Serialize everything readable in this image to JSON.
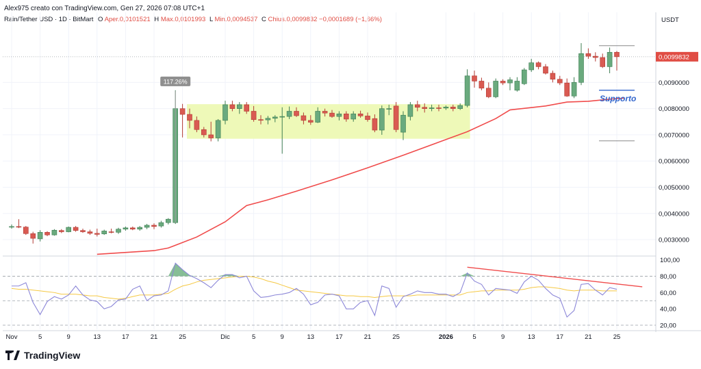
{
  "header": {
    "created_by": "Alex975 creato con TradingView.com, Gen 27, 2026 07:08 UTC+1",
    "symbol_line": "Rain/Tether USD · 1D · BitMart",
    "open_label": "O",
    "open_value": "Aper.0,0101521",
    "high_label": "H",
    "high_value": "Max.0,0101993",
    "low_label": "L",
    "low_value": "Min.0,0094537",
    "close_label": "C",
    "close_value": "Chius.0,0099832",
    "change_value": "−0,0001689 (−1,66%)"
  },
  "colors": {
    "up": "#6aaa7e",
    "up_border": "#3d7d52",
    "down": "#d95a52",
    "down_border": "#b23a33",
    "ma": "#f04b4b",
    "rsi": "#8c87d8",
    "rsi_ma": "#f5c842",
    "range_box": "#eef9b8",
    "support": "#3366cc"
  },
  "logo": {
    "text": "TradingView"
  },
  "chart_data": {
    "type": "candlestick",
    "currency": "USDT",
    "last_price_label": "0,0099832",
    "ylim": [
      0.0024,
      0.0111
    ],
    "y_ticks": [
      {
        "value": 0.003,
        "label": "0,0030000"
      },
      {
        "value": 0.004,
        "label": "0,0040000"
      },
      {
        "value": 0.005,
        "label": "0,0050000"
      },
      {
        "value": 0.006,
        "label": "0,0060000"
      },
      {
        "value": 0.007,
        "label": "0,0070000"
      },
      {
        "value": 0.008,
        "label": "0,0080000"
      },
      {
        "value": 0.009,
        "label": "0,0090000"
      }
    ],
    "x_ticks": [
      {
        "index": 0,
        "label": "Nov"
      },
      {
        "index": 4,
        "label": "5"
      },
      {
        "index": 8,
        "label": "9"
      },
      {
        "index": 12,
        "label": "13"
      },
      {
        "index": 16,
        "label": "17"
      },
      {
        "index": 20,
        "label": "21"
      },
      {
        "index": 24,
        "label": "25"
      },
      {
        "index": 30,
        "label": "Dic"
      },
      {
        "index": 34,
        "label": "5"
      },
      {
        "index": 38,
        "label": "9"
      },
      {
        "index": 42,
        "label": "13"
      },
      {
        "index": 46,
        "label": "17"
      },
      {
        "index": 50,
        "label": "21"
      },
      {
        "index": 54,
        "label": "25"
      },
      {
        "index": 61,
        "label": "2026"
      },
      {
        "index": 65,
        "label": "5"
      },
      {
        "index": 69,
        "label": "9"
      },
      {
        "index": 73,
        "label": "13"
      },
      {
        "index": 77,
        "label": "17"
      },
      {
        "index": 81,
        "label": "21"
      },
      {
        "index": 85,
        "label": "25"
      }
    ],
    "candles": [
      {
        "o": 0.00348,
        "h": 0.00358,
        "l": 0.00342,
        "c": 0.0035
      },
      {
        "o": 0.0035,
        "h": 0.00378,
        "l": 0.00344,
        "c": 0.00348
      },
      {
        "o": 0.00348,
        "h": 0.00352,
        "l": 0.00318,
        "c": 0.00323
      },
      {
        "o": 0.00323,
        "h": 0.0033,
        "l": 0.00285,
        "c": 0.00305
      },
      {
        "o": 0.00303,
        "h": 0.00336,
        "l": 0.00293,
        "c": 0.00328
      },
      {
        "o": 0.00328,
        "h": 0.00332,
        "l": 0.00313,
        "c": 0.00318
      },
      {
        "o": 0.00318,
        "h": 0.0034,
        "l": 0.00315,
        "c": 0.00336
      },
      {
        "o": 0.00335,
        "h": 0.0034,
        "l": 0.00325,
        "c": 0.0033
      },
      {
        "o": 0.0033,
        "h": 0.0035,
        "l": 0.00328,
        "c": 0.00347
      },
      {
        "o": 0.00347,
        "h": 0.00352,
        "l": 0.0033,
        "c": 0.00335
      },
      {
        "o": 0.00335,
        "h": 0.00342,
        "l": 0.00326,
        "c": 0.0033
      },
      {
        "o": 0.0033,
        "h": 0.00338,
        "l": 0.00318,
        "c": 0.00324
      },
      {
        "o": 0.00324,
        "h": 0.00342,
        "l": 0.00312,
        "c": 0.0032
      },
      {
        "o": 0.00322,
        "h": 0.00338,
        "l": 0.00318,
        "c": 0.00333
      },
      {
        "o": 0.0033,
        "h": 0.00342,
        "l": 0.00324,
        "c": 0.00328
      },
      {
        "o": 0.00328,
        "h": 0.00345,
        "l": 0.00322,
        "c": 0.0034
      },
      {
        "o": 0.0034,
        "h": 0.0035,
        "l": 0.00334,
        "c": 0.00345
      },
      {
        "o": 0.00345,
        "h": 0.0035,
        "l": 0.00336,
        "c": 0.0034
      },
      {
        "o": 0.0034,
        "h": 0.00352,
        "l": 0.00334,
        "c": 0.00347
      },
      {
        "o": 0.00347,
        "h": 0.0036,
        "l": 0.0034,
        "c": 0.00355
      },
      {
        "o": 0.00355,
        "h": 0.00362,
        "l": 0.0034,
        "c": 0.0035
      },
      {
        "o": 0.00352,
        "h": 0.00372,
        "l": 0.00346,
        "c": 0.00365
      },
      {
        "o": 0.00365,
        "h": 0.00382,
        "l": 0.00358,
        "c": 0.00378
      },
      {
        "o": 0.00365,
        "h": 0.0087,
        "l": 0.0036,
        "c": 0.008
      },
      {
        "o": 0.008,
        "h": 0.00818,
        "l": 0.0069,
        "c": 0.00778
      },
      {
        "o": 0.00778,
        "h": 0.008,
        "l": 0.00725,
        "c": 0.00755
      },
      {
        "o": 0.00755,
        "h": 0.0077,
        "l": 0.0071,
        "c": 0.0072
      },
      {
        "o": 0.0072,
        "h": 0.0073,
        "l": 0.0069,
        "c": 0.007
      },
      {
        "o": 0.007,
        "h": 0.0075,
        "l": 0.00675,
        "c": 0.00688
      },
      {
        "o": 0.00688,
        "h": 0.0076,
        "l": 0.00675,
        "c": 0.00755
      },
      {
        "o": 0.00755,
        "h": 0.0083,
        "l": 0.0074,
        "c": 0.00815
      },
      {
        "o": 0.00815,
        "h": 0.0083,
        "l": 0.0079,
        "c": 0.008
      },
      {
        "o": 0.008,
        "h": 0.00825,
        "l": 0.0078,
        "c": 0.00815
      },
      {
        "o": 0.00815,
        "h": 0.00825,
        "l": 0.0078,
        "c": 0.0079
      },
      {
        "o": 0.0079,
        "h": 0.0081,
        "l": 0.0075,
        "c": 0.00758
      },
      {
        "o": 0.00758,
        "h": 0.00775,
        "l": 0.0074,
        "c": 0.00757
      },
      {
        "o": 0.00757,
        "h": 0.00772,
        "l": 0.0074,
        "c": 0.00763
      },
      {
        "o": 0.00763,
        "h": 0.00775,
        "l": 0.00748,
        "c": 0.00768
      },
      {
        "o": 0.00768,
        "h": 0.00805,
        "l": 0.00628,
        "c": 0.0077
      },
      {
        "o": 0.0077,
        "h": 0.00808,
        "l": 0.0076,
        "c": 0.0079
      },
      {
        "o": 0.0079,
        "h": 0.00805,
        "l": 0.00768,
        "c": 0.00773
      },
      {
        "o": 0.00773,
        "h": 0.00785,
        "l": 0.0074,
        "c": 0.00755
      },
      {
        "o": 0.00755,
        "h": 0.00775,
        "l": 0.00738,
        "c": 0.00748
      },
      {
        "o": 0.00748,
        "h": 0.00805,
        "l": 0.00745,
        "c": 0.0079
      },
      {
        "o": 0.0079,
        "h": 0.008,
        "l": 0.0077,
        "c": 0.00783
      },
      {
        "o": 0.00783,
        "h": 0.00795,
        "l": 0.00765,
        "c": 0.0077
      },
      {
        "o": 0.0077,
        "h": 0.0079,
        "l": 0.00755,
        "c": 0.0078
      },
      {
        "o": 0.0078,
        "h": 0.0079,
        "l": 0.0075,
        "c": 0.0076
      },
      {
        "o": 0.0076,
        "h": 0.0079,
        "l": 0.0075,
        "c": 0.0078
      },
      {
        "o": 0.0078,
        "h": 0.00792,
        "l": 0.00765,
        "c": 0.00772
      },
      {
        "o": 0.00772,
        "h": 0.00785,
        "l": 0.0075,
        "c": 0.00758
      },
      {
        "o": 0.00762,
        "h": 0.00778,
        "l": 0.0071,
        "c": 0.00718
      },
      {
        "o": 0.00718,
        "h": 0.00812,
        "l": 0.007,
        "c": 0.008
      },
      {
        "o": 0.008,
        "h": 0.00815,
        "l": 0.00775,
        "c": 0.008
      },
      {
        "o": 0.0081,
        "h": 0.00825,
        "l": 0.0071,
        "c": 0.0072
      },
      {
        "o": 0.0071,
        "h": 0.0079,
        "l": 0.0068,
        "c": 0.00775
      },
      {
        "o": 0.0077,
        "h": 0.00825,
        "l": 0.00755,
        "c": 0.00815
      },
      {
        "o": 0.00815,
        "h": 0.0083,
        "l": 0.0079,
        "c": 0.00805
      },
      {
        "o": 0.00805,
        "h": 0.0082,
        "l": 0.00785,
        "c": 0.008
      },
      {
        "o": 0.008,
        "h": 0.00815,
        "l": 0.0079,
        "c": 0.00803
      },
      {
        "o": 0.00803,
        "h": 0.00815,
        "l": 0.0079,
        "c": 0.00802
      },
      {
        "o": 0.00802,
        "h": 0.00812,
        "l": 0.00795,
        "c": 0.00806
      },
      {
        "o": 0.00806,
        "h": 0.00815,
        "l": 0.0079,
        "c": 0.008
      },
      {
        "o": 0.008,
        "h": 0.0082,
        "l": 0.00795,
        "c": 0.00812
      },
      {
        "o": 0.00812,
        "h": 0.0095,
        "l": 0.00805,
        "c": 0.00925
      },
      {
        "o": 0.00925,
        "h": 0.00945,
        "l": 0.0088,
        "c": 0.00905
      },
      {
        "o": 0.00905,
        "h": 0.00918,
        "l": 0.0087,
        "c": 0.00878
      },
      {
        "o": 0.00878,
        "h": 0.009,
        "l": 0.0084,
        "c": 0.00845
      },
      {
        "o": 0.00845,
        "h": 0.00915,
        "l": 0.0084,
        "c": 0.00905
      },
      {
        "o": 0.00905,
        "h": 0.00912,
        "l": 0.0089,
        "c": 0.00898
      },
      {
        "o": 0.00898,
        "h": 0.0092,
        "l": 0.0087,
        "c": 0.0091
      },
      {
        "o": 0.0087,
        "h": 0.0092,
        "l": 0.00865,
        "c": 0.00905
      },
      {
        "o": 0.00895,
        "h": 0.00955,
        "l": 0.0089,
        "c": 0.00948
      },
      {
        "o": 0.00948,
        "h": 0.0099,
        "l": 0.0094,
        "c": 0.00975
      },
      {
        "o": 0.00975,
        "h": 0.0098,
        "l": 0.0095,
        "c": 0.0096
      },
      {
        "o": 0.0096,
        "h": 0.0097,
        "l": 0.0093,
        "c": 0.00935
      },
      {
        "o": 0.00935,
        "h": 0.00945,
        "l": 0.009,
        "c": 0.00912
      },
      {
        "o": 0.00912,
        "h": 0.00925,
        "l": 0.0089,
        "c": 0.00898
      },
      {
        "o": 0.00898,
        "h": 0.00915,
        "l": 0.00845,
        "c": 0.00848
      },
      {
        "o": 0.00848,
        "h": 0.0092,
        "l": 0.0084,
        "c": 0.009
      },
      {
        "o": 0.009,
        "h": 0.0105,
        "l": 0.0089,
        "c": 0.0101
      },
      {
        "o": 0.0101,
        "h": 0.0103,
        "l": 0.0099,
        "c": 0.01
      },
      {
        "o": 0.01,
        "h": 0.01015,
        "l": 0.0098,
        "c": 0.00995
      },
      {
        "o": 0.00995,
        "h": 0.0101,
        "l": 0.00955,
        "c": 0.0096
      },
      {
        "o": 0.0096,
        "h": 0.01033,
        "l": 0.00935,
        "c": 0.01015
      },
      {
        "o": 0.01015,
        "h": 0.0102,
        "l": 0.00945,
        "c": 0.00998
      }
    ],
    "moving_average": [
      {
        "index": 12,
        "value": 0.00244
      },
      {
        "index": 20,
        "value": 0.00258
      },
      {
        "index": 22,
        "value": 0.00268
      },
      {
        "index": 26,
        "value": 0.0031
      },
      {
        "index": 30,
        "value": 0.00368
      },
      {
        "index": 33,
        "value": 0.0043
      },
      {
        "index": 36,
        "value": 0.00452
      },
      {
        "index": 40,
        "value": 0.00485
      },
      {
        "index": 45,
        "value": 0.00528
      },
      {
        "index": 50,
        "value": 0.00574
      },
      {
        "index": 55,
        "value": 0.00622
      },
      {
        "index": 60,
        "value": 0.00672
      },
      {
        "index": 64,
        "value": 0.00712
      },
      {
        "index": 68,
        "value": 0.00762
      },
      {
        "index": 70,
        "value": 0.00795
      },
      {
        "index": 75,
        "value": 0.0081
      },
      {
        "index": 78,
        "value": 0.00825
      },
      {
        "index": 81,
        "value": 0.00828
      },
      {
        "index": 84,
        "value": 0.00836
      },
      {
        "index": 86,
        "value": 0.0084
      }
    ],
    "range_box": {
      "from_index": 25,
      "to_index": 64,
      "low": 0.00685,
      "high": 0.00817
    },
    "pct_label": "117.26%",
    "pct_index": 23,
    "support": {
      "label": "Supporto",
      "price": 0.0087,
      "lower_price": 0.00677,
      "from_index": 82.5,
      "to_index": 87.5
    },
    "rsi": {
      "ylim": [
        15,
        103
      ],
      "ticks": [
        {
          "value": 100,
          "label": "100,00"
        },
        {
          "value": 80,
          "label": "80,00"
        },
        {
          "value": 60,
          "label": "60,00"
        },
        {
          "value": 40,
          "label": "40,00"
        },
        {
          "value": 20,
          "label": "20,00"
        }
      ],
      "upper_band": 80,
      "lower_band": 20,
      "mid_band": 50,
      "values": [
        68,
        68,
        72,
        48,
        33,
        49,
        55,
        52,
        57,
        68,
        57,
        51,
        49,
        40,
        43,
        51,
        52,
        64,
        68,
        50,
        56,
        57,
        62,
        96,
        88,
        81,
        77,
        72,
        66,
        75,
        82,
        82,
        78,
        80,
        62,
        54,
        55,
        57,
        58,
        60,
        65,
        58,
        45,
        48,
        57,
        58,
        56,
        40,
        40,
        48,
        50,
        32,
        68,
        65,
        42,
        55,
        58,
        62,
        60,
        60,
        58,
        58,
        55,
        60,
        84,
        74,
        70,
        57,
        65,
        64,
        63,
        59,
        73,
        80,
        75,
        65,
        57,
        53,
        30,
        38,
        70,
        71,
        63,
        57,
        66,
        64
      ],
      "ma_values": [
        65,
        64,
        64,
        63,
        62,
        61,
        60,
        58,
        58,
        58,
        57,
        56,
        56,
        54,
        53,
        52,
        53,
        55,
        57,
        57,
        57,
        58,
        59,
        64,
        68,
        70,
        73,
        75,
        76,
        77,
        78,
        79,
        80,
        80,
        79,
        77,
        74,
        72,
        69,
        66,
        63,
        62,
        61,
        60,
        59,
        58,
        57,
        56,
        56,
        55,
        55,
        54,
        55,
        56,
        56,
        56,
        56,
        57,
        57,
        57,
        57,
        57,
        57,
        57,
        60,
        61,
        62,
        62,
        63,
        63,
        63,
        63,
        64,
        66,
        67,
        67,
        66,
        65,
        63,
        62,
        63,
        63,
        63,
        62,
        62,
        62
      ],
      "divergence": {
        "from_index": 64,
        "from_value": 91,
        "to_index": 88,
        "to_value": 67
      }
    }
  }
}
